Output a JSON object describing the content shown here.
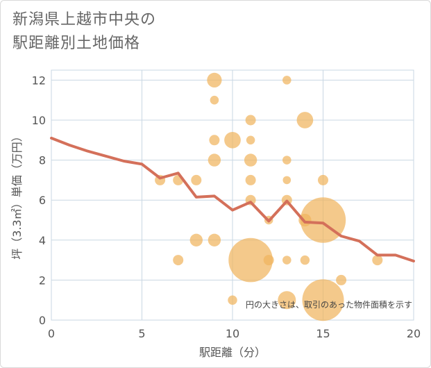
{
  "title_lines": [
    "新潟県上越市中央の",
    "駅距離別土地価格"
  ],
  "chart_data": {
    "type": "scatter",
    "title": "新潟県上越市中央の駅距離別土地価格",
    "xlabel": "駅距離（分）",
    "ylabel": "坪（3.3㎡）単価（万円）",
    "xlim": [
      0,
      20
    ],
    "ylim": [
      0,
      12.5
    ],
    "xticks": [
      0,
      5,
      10,
      15,
      20
    ],
    "yticks": [
      0,
      2,
      4,
      6,
      8,
      10,
      12
    ],
    "grid": true,
    "note": "円の大きさは、取引のあった物件面積を示す",
    "colors": {
      "bubble": "#f0b45e",
      "line": "#d4705a",
      "grid": "#c9d7e3"
    },
    "points": [
      {
        "x": 6,
        "y": 7,
        "size": 1
      },
      {
        "x": 7,
        "y": 7,
        "size": 1
      },
      {
        "x": 7,
        "y": 3,
        "size": 1
      },
      {
        "x": 8,
        "y": 7,
        "size": 1
      },
      {
        "x": 8,
        "y": 4,
        "size": 1.5
      },
      {
        "x": 9,
        "y": 12,
        "size": 2
      },
      {
        "x": 9,
        "y": 11,
        "size": 0.7
      },
      {
        "x": 9,
        "y": 9,
        "size": 1
      },
      {
        "x": 9,
        "y": 8,
        "size": 1.5
      },
      {
        "x": 9,
        "y": 4,
        "size": 1.5
      },
      {
        "x": 10,
        "y": 9,
        "size": 2.5
      },
      {
        "x": 10,
        "y": 1,
        "size": 0.8
      },
      {
        "x": 11,
        "y": 10,
        "size": 1
      },
      {
        "x": 11,
        "y": 9,
        "size": 0.7
      },
      {
        "x": 11,
        "y": 8,
        "size": 1.5
      },
      {
        "x": 11,
        "y": 7,
        "size": 1
      },
      {
        "x": 11,
        "y": 6,
        "size": 1
      },
      {
        "x": 11,
        "y": 3,
        "size": 18
      },
      {
        "x": 12,
        "y": 5,
        "size": 0.7
      },
      {
        "x": 12,
        "y": 3,
        "size": 1
      },
      {
        "x": 13,
        "y": 12,
        "size": 0.7
      },
      {
        "x": 13,
        "y": 8,
        "size": 0.7
      },
      {
        "x": 13,
        "y": 7,
        "size": 0.6
      },
      {
        "x": 13,
        "y": 6,
        "size": 1
      },
      {
        "x": 13,
        "y": 3,
        "size": 0.7
      },
      {
        "x": 13,
        "y": 1,
        "size": 3
      },
      {
        "x": 14,
        "y": 10,
        "size": 2.5
      },
      {
        "x": 14,
        "y": 5,
        "size": 1.5
      },
      {
        "x": 14,
        "y": 3,
        "size": 0.8
      },
      {
        "x": 15,
        "y": 7,
        "size": 1
      },
      {
        "x": 15,
        "y": 5,
        "size": 19
      },
      {
        "x": 15,
        "y": 1,
        "size": 16
      },
      {
        "x": 16,
        "y": 2,
        "size": 1
      },
      {
        "x": 18,
        "y": 3,
        "size": 1
      }
    ],
    "trend": {
      "x": [
        0,
        1,
        2,
        3,
        4,
        5,
        6,
        7,
        8,
        9,
        10,
        11,
        12,
        13,
        14,
        15,
        16,
        17,
        18,
        19,
        20
      ],
      "y": [
        9.1,
        8.75,
        8.45,
        8.2,
        7.95,
        7.8,
        7.1,
        7.35,
        6.15,
        6.2,
        5.5,
        5.9,
        4.95,
        5.95,
        4.9,
        4.85,
        4.2,
        3.95,
        3.25,
        3.25,
        2.95
      ]
    }
  }
}
